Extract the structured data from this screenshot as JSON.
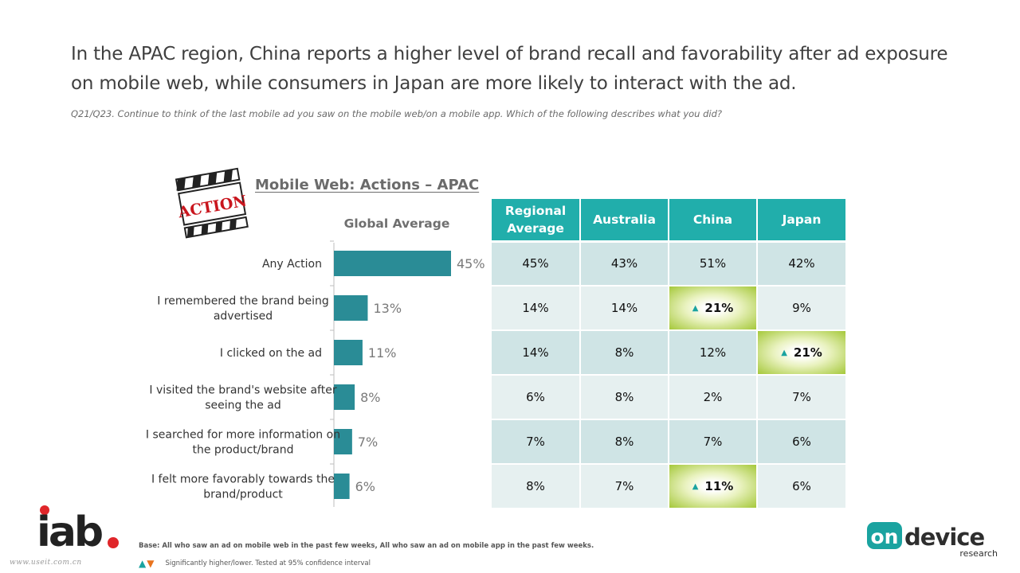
{
  "headline": "In the APAC region, China reports a higher level of brand recall and favorability after ad exposure on mobile web, while consumers in Japan are more likely to interact with the ad.",
  "question": "Q21/Q23. Continue to think of the last mobile ad you saw on the mobile web/on a mobile app. Which of the following describes what you did?",
  "clapper_text": "ACTION",
  "chart_title": "Mobile Web: Actions –  APAC",
  "chart_data": {
    "type": "bar",
    "orientation": "horizontal",
    "title": "Global Average",
    "categories": [
      "Any Action",
      "I remembered the brand being advertised",
      "I clicked on the ad",
      "I visited the brand's website after seeing the ad",
      "I searched for more information on the product/brand",
      "I felt more favorably towards the brand/product"
    ],
    "category_lines": [
      [
        "Any Action"
      ],
      [
        "I remembered the brand being",
        "advertised"
      ],
      [
        "I clicked on the ad"
      ],
      [
        "I visited the brand's website after",
        "seeing the ad"
      ],
      [
        "I searched for more information on",
        "the product/brand"
      ],
      [
        "I felt more favorably towards the",
        "brand/product"
      ]
    ],
    "values": [
      45,
      13,
      11,
      8,
      7,
      6
    ],
    "value_labels": [
      "45%",
      "13%",
      "11%",
      "8%",
      "7%",
      "6%"
    ],
    "xlim": [
      0,
      45
    ],
    "bar_color": "#2a8c96",
    "grid": false
  },
  "table": {
    "header_color": "#21aeab",
    "highlight_color": "#a5c83a",
    "columns": [
      [
        "Regional",
        "Average"
      ],
      [
        "Australia"
      ],
      [
        "China"
      ],
      [
        "Japan"
      ]
    ],
    "rows": [
      [
        "45%",
        "43%",
        "51%",
        "42%"
      ],
      [
        "14%",
        "14%",
        "21%",
        "9%"
      ],
      [
        "14%",
        "8%",
        "12%",
        "21%"
      ],
      [
        "6%",
        "8%",
        "2%",
        "7%"
      ],
      [
        "7%",
        "8%",
        "7%",
        "6%"
      ],
      [
        "8%",
        "7%",
        "11%",
        "6%"
      ]
    ],
    "significant_higher": [
      [
        1,
        2
      ],
      [
        2,
        3
      ],
      [
        5,
        2
      ]
    ]
  },
  "footer": {
    "logo": "iab.",
    "watermark": "www.useit.com.cn",
    "base": "Base: All who saw an ad on mobile web in the past few weeks, All who saw an ad on mobile app in the past few weeks.",
    "legend": "Significantly higher/lower. Tested at 95% confidence interval",
    "brand_top": "on",
    "brand_main": "device",
    "brand_sub": "research"
  }
}
